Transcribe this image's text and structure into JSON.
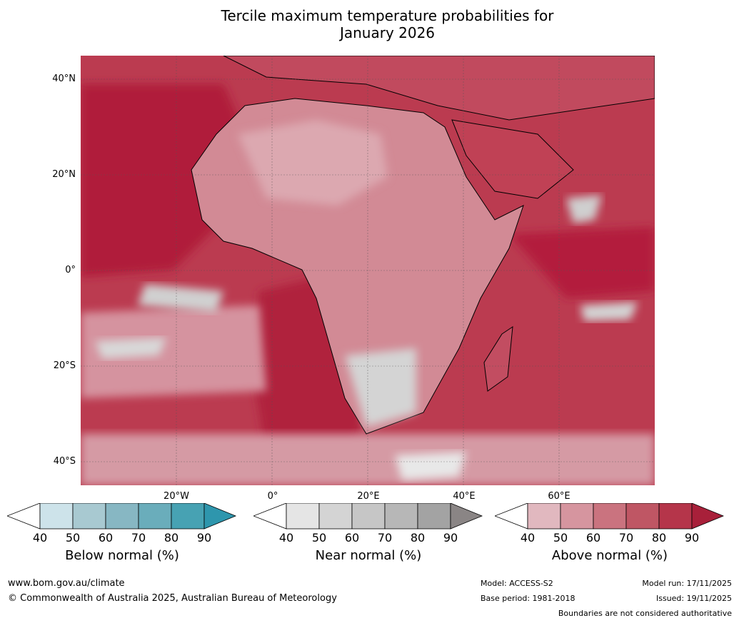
{
  "title": {
    "line1": "Tercile maximum temperature probabilities for",
    "line2": "January 2026"
  },
  "axes": {
    "lat_labels": [
      "40°N",
      "20°N",
      "0°",
      "20°S",
      "40°S"
    ],
    "lon_labels": [
      "20°W",
      "0°",
      "20°E",
      "40°E",
      "60°E"
    ]
  },
  "colorbars": [
    {
      "name": "Below normal (%)",
      "ticks": [
        "40",
        "50",
        "60",
        "70",
        "80",
        "90"
      ],
      "colors": [
        "#ffffff",
        "#cde3ea",
        "#a8c9d1",
        "#87b7c3",
        "#6aadbb",
        "#47a2b3",
        "#2e96ad"
      ]
    },
    {
      "name": "Near normal (%)",
      "ticks": [
        "40",
        "50",
        "60",
        "70",
        "80",
        "90"
      ],
      "colors": [
        "#ffffff",
        "#e5e5e5",
        "#d4d4d4",
        "#c6c6c6",
        "#b7b7b7",
        "#a3a3a3",
        "#8a8585"
      ]
    },
    {
      "name": "Above normal (%)",
      "ticks": [
        "40",
        "50",
        "60",
        "70",
        "80",
        "90"
      ],
      "colors": [
        "#ffffff",
        "#e1b8bf",
        "#d6959f",
        "#ca737f",
        "#bf5664",
        "#b5354a",
        "#a8203a"
      ]
    }
  ],
  "footer": {
    "website": "www.bom.gov.au/climate",
    "copyright": "© Commonwealth of Australia 2025, Australian Bureau of Meteorology",
    "model": "Model: ACCESS-S2",
    "base_period": "Base period: 1981-2018",
    "model_run": "Model run: 17/11/2025",
    "issued": "Issued: 19/11/2025",
    "disclaimer": "Boundaries are not considered authoritative"
  }
}
